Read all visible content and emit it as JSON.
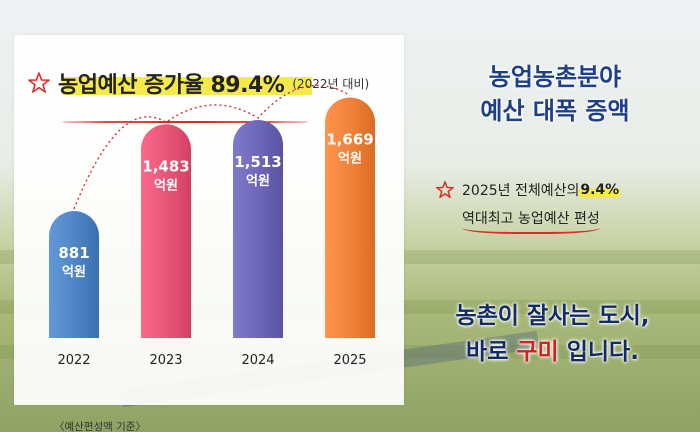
{
  "headline": {
    "title": "농업예산 증가율 89.4%",
    "note": "(2022년 대비)"
  },
  "colors": {
    "bar_2022": "#4f86c6",
    "bar_2023": "#e8567a",
    "bar_2024": "#6f67b8",
    "bar_2025": "#f0823a",
    "accent_red": "#e02a2a",
    "highlight_yellow": "#f6ea4b",
    "title_blue": "#1e3f88"
  },
  "chart_data": {
    "type": "bar",
    "title": "농업예산 증가율 89.4% (2022년 대비)",
    "categories": [
      "2022",
      "2023",
      "2024",
      "2025"
    ],
    "values": [
      881,
      1483,
      1513,
      1669
    ],
    "value_labels": [
      "881",
      "1,483",
      "1,513",
      "1,669"
    ],
    "unit": "억원",
    "xlabel": "",
    "ylabel": "",
    "ylim": [
      0,
      1700
    ],
    "grid": false,
    "trend_line": "dotted-arc",
    "footnote": "〈예산편성액 기준〉"
  },
  "right_panel": {
    "title_line1": "농업농촌분야",
    "title_line2": "예산 대폭 증액",
    "detail_prefix": "2025년 전체예산의 ",
    "detail_highlight": "9.4%",
    "detail_line2": "역대최고 농업예산 편성"
  },
  "slogan": {
    "line1": "농촌이 잘사는 도시,",
    "line2_prefix": "바로 ",
    "line2_highlight": "구미",
    "line2_suffix": " 입니다."
  }
}
